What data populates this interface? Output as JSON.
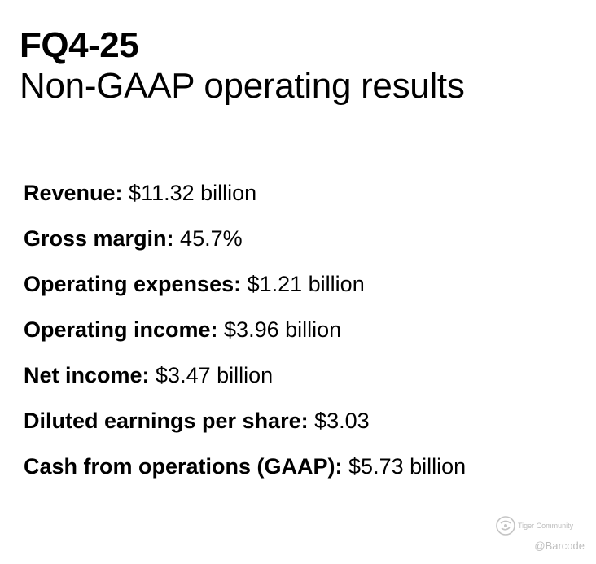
{
  "header": {
    "line1": "FQ4-25",
    "line2": "Non-GAAP operating results"
  },
  "metrics": [
    {
      "label": "Revenue:",
      "value": " $11.32 billion"
    },
    {
      "label": "Gross margin:",
      "value": " 45.7%"
    },
    {
      "label": "Operating expenses:",
      "value": " $1.21 billion"
    },
    {
      "label": "Operating income:",
      "value": " $3.96 billion"
    },
    {
      "label": "Net income:",
      "value": " $3.47 billion"
    },
    {
      "label": "Diluted earnings per share:",
      "value": " $3.03"
    },
    {
      "label": "Cash from operations (GAAP):",
      "value": " $5.73 billion"
    }
  ],
  "watermark": {
    "community": "Tiger Community",
    "handle": "@Barcode",
    "logo_icon": "tiger-logo-icon",
    "color": "#bdbdbd"
  }
}
